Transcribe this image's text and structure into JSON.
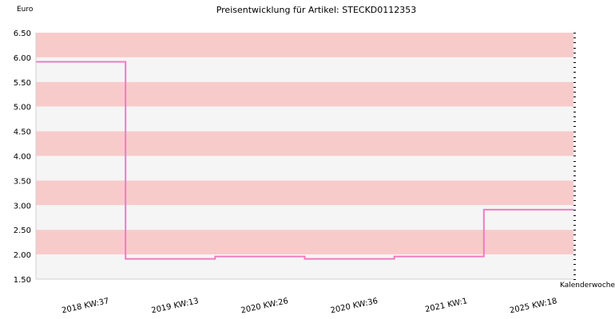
{
  "chart_data": {
    "type": "line",
    "title": "Preisentwicklung für Artikel: STECKD0112353",
    "ylabel": "Euro",
    "xlabel": "Kalenderwoche",
    "ylim": [
      1.5,
      6.5
    ],
    "yticks": [
      "6.50",
      "6.00",
      "5.50",
      "5.00",
      "4.50",
      "4.00",
      "3.50",
      "3.00",
      "2.50",
      "2.00",
      "1.50"
    ],
    "categories": [
      "2018 KW:37",
      "2019 KW:13",
      "2020 KW:26",
      "2020 KW:36",
      "2021 KW:1",
      "2025 KW:18"
    ],
    "step": true,
    "series": [
      {
        "values": [
          5.91,
          1.91,
          1.96,
          1.91,
          1.96,
          2.91
        ],
        "color": "#f07cc0"
      }
    ],
    "grid": true,
    "band_colors": [
      "#f8cbcb",
      "#f5f5f5"
    ]
  }
}
